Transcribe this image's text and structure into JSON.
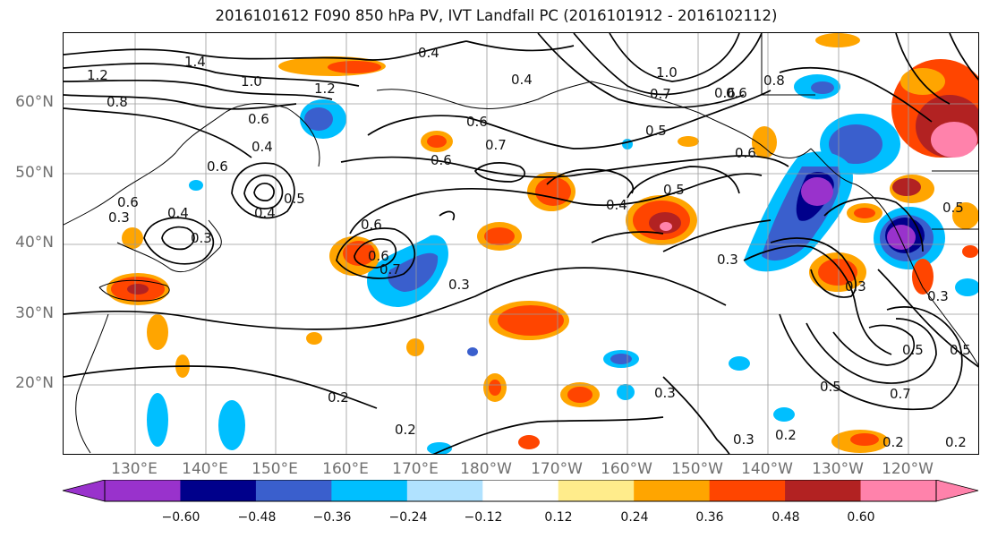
{
  "title": "2016101612 F090 850 hPa PV, IVT Landfall PC (2016101912 - 2016102112)",
  "lat_labels": [
    "60°N",
    "50°N",
    "40°N",
    "30°N",
    "20°N"
  ],
  "lon_labels": [
    "130°E",
    "140°E",
    "150°E",
    "160°E",
    "170°E",
    "180°W",
    "170°W",
    "160°W",
    "150°W",
    "140°W",
    "130°W",
    "120°W"
  ],
  "colorbar": {
    "ticks": [
      "−0.60",
      "−0.48",
      "−0.36",
      "−0.24",
      "−0.12",
      "0.12",
      "0.24",
      "0.36",
      "0.48",
      "0.60"
    ],
    "colors": [
      "#9932cc",
      "#00008b",
      "#3a5fcd",
      "#00bfff",
      "#b0e2ff",
      "#ffffff",
      "#ffec8b",
      "#ffa500",
      "#ff4500",
      "#b22222",
      "#ff82ab"
    ]
  },
  "contour_labels": [
    "1.2",
    "1.4",
    "0.8",
    "1.0",
    "1.2",
    "0.4",
    "0.4",
    "1.0",
    "0.8",
    "0.6",
    "0.7",
    "0.6",
    "0.4",
    "0.6",
    "0.6",
    "0.7",
    "0.5",
    "0.5",
    "0.4",
    "0.5",
    "0.4",
    "0.3",
    "0.5",
    "0.4",
    "0.3",
    "0.6",
    "0.7",
    "0.3",
    "0.3",
    "0.5",
    "0.6",
    "0.3",
    "0.5",
    "0.3",
    "0.5",
    "0.7",
    "0.2",
    "0.2",
    "0.3",
    "0.2",
    "0.2",
    "0.2",
    "0.3",
    "0.6",
    "0.6",
    "0.6",
    "0.6"
  ]
}
